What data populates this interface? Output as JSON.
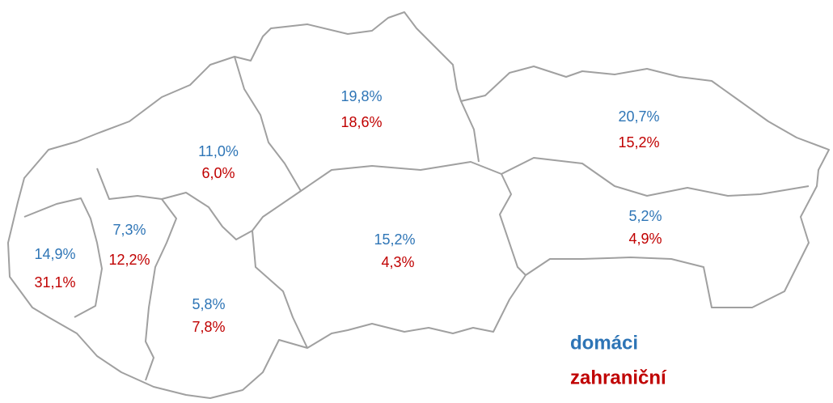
{
  "regions": [
    {
      "domestic": "14,9%",
      "foreign": "31,1%"
    },
    {
      "domestic": "7,3%",
      "foreign": "12,2%"
    },
    {
      "domestic": "11,0%",
      "foreign": "6,0%"
    },
    {
      "domestic": "5,8%",
      "foreign": "7,8%"
    },
    {
      "domestic": "19,8%",
      "foreign": "18,6%"
    },
    {
      "domestic": "15,2%",
      "foreign": "4,3%"
    },
    {
      "domestic": "20,7%",
      "foreign": "15,2%"
    },
    {
      "domestic": "5,2%",
      "foreign": "4,9%"
    }
  ],
  "legend": {
    "domestic": "domáci",
    "foreign": "zahraniční"
  }
}
